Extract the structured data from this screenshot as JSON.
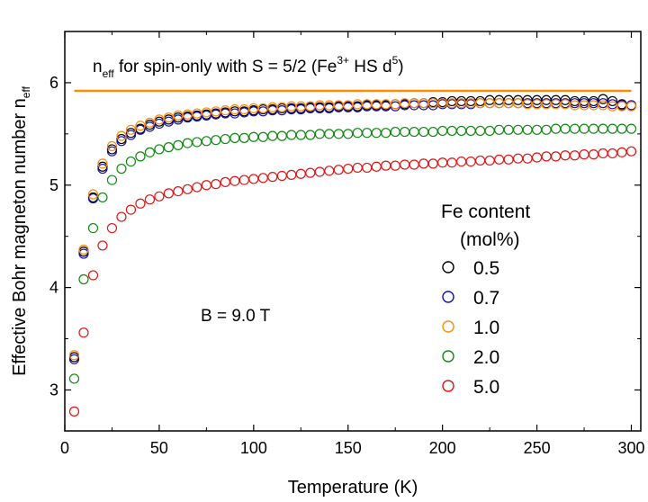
{
  "chart_data": {
    "type": "scatter",
    "xlabel": "Temperature (K)",
    "ylabel_main": "Effective Bohr magneton number n",
    "ylabel_sub": "eff",
    "xlim": [
      0,
      305
    ],
    "ylim": [
      2.6,
      6.5
    ],
    "xticks": [
      0,
      50,
      100,
      150,
      200,
      250,
      300
    ],
    "yticks": [
      3,
      4,
      5,
      6
    ],
    "grid": false,
    "reference_line": {
      "y": 5.92,
      "x_range": [
        5,
        300
      ],
      "color": "#FF8C00",
      "label": {
        "n": "n",
        "eff": "eff",
        "t1": " for spin-only with S = 5/2 (Fe",
        "sup1": "3+",
        "t2": " HS d",
        "sup2": "5",
        "t3": ")"
      }
    },
    "annotation": "B = 9.0 T",
    "legend": {
      "title_line1": "Fe content",
      "title_line2": "(mol%)",
      "placement": "center-right"
    },
    "series": [
      {
        "name": "0.5",
        "color": "#000000",
        "x": [
          5,
          10,
          15,
          20,
          25,
          30,
          35,
          40,
          45,
          50,
          55,
          60,
          65,
          70,
          75,
          80,
          85,
          90,
          95,
          100,
          105,
          110,
          115,
          120,
          125,
          130,
          135,
          140,
          145,
          150,
          155,
          160,
          165,
          170,
          175,
          180,
          185,
          190,
          195,
          200,
          205,
          210,
          215,
          220,
          225,
          230,
          235,
          240,
          245,
          250,
          255,
          260,
          265,
          270,
          275,
          280,
          285,
          290,
          295,
          300
        ],
        "y": [
          3.32,
          4.35,
          4.88,
          5.18,
          5.35,
          5.45,
          5.51,
          5.55,
          5.59,
          5.62,
          5.64,
          5.66,
          5.67,
          5.68,
          5.69,
          5.7,
          5.71,
          5.72,
          5.72,
          5.73,
          5.74,
          5.74,
          5.75,
          5.75,
          5.75,
          5.76,
          5.76,
          5.76,
          5.77,
          5.77,
          5.77,
          5.78,
          5.78,
          5.78,
          5.79,
          5.79,
          5.8,
          5.8,
          5.81,
          5.81,
          5.82,
          5.82,
          5.82,
          5.82,
          5.83,
          5.83,
          5.83,
          5.83,
          5.83,
          5.83,
          5.83,
          5.83,
          5.83,
          5.82,
          5.82,
          5.82,
          5.84,
          5.82,
          5.79,
          5.78
        ]
      },
      {
        "name": "0.7",
        "color": "#1010C0",
        "x": [
          5,
          10,
          15,
          20,
          25,
          30,
          35,
          40,
          45,
          50,
          55,
          60,
          65,
          70,
          75,
          80,
          85,
          90,
          95,
          100,
          105,
          110,
          115,
          120,
          125,
          130,
          135,
          140,
          145,
          150,
          155,
          160,
          165,
          170,
          175,
          180,
          185,
          190,
          195,
          200,
          205,
          210,
          215,
          220,
          225,
          230,
          235,
          240,
          245,
          250,
          255,
          260,
          265,
          270,
          275,
          280,
          285,
          290,
          295,
          300
        ],
        "y": [
          3.3,
          4.33,
          4.87,
          5.16,
          5.33,
          5.43,
          5.49,
          5.54,
          5.57,
          5.6,
          5.62,
          5.64,
          5.66,
          5.67,
          5.68,
          5.69,
          5.7,
          5.7,
          5.71,
          5.72,
          5.72,
          5.73,
          5.73,
          5.74,
          5.74,
          5.75,
          5.75,
          5.75,
          5.76,
          5.76,
          5.76,
          5.77,
          5.77,
          5.77,
          5.77,
          5.78,
          5.78,
          5.78,
          5.78,
          5.79,
          5.79,
          5.79,
          5.79,
          5.8,
          5.8,
          5.8,
          5.8,
          5.8,
          5.8,
          5.8,
          5.8,
          5.8,
          5.8,
          5.8,
          5.8,
          5.8,
          5.8,
          5.79,
          5.78,
          5.78
        ]
      },
      {
        "name": "1.0",
        "color": "#FF8C00",
        "x": [
          5,
          10,
          15,
          20,
          25,
          30,
          35,
          40,
          45,
          50,
          55,
          60,
          65,
          70,
          75,
          80,
          85,
          90,
          95,
          100,
          105,
          110,
          115,
          120,
          125,
          130,
          135,
          140,
          145,
          150,
          155,
          160,
          165,
          170,
          175,
          180,
          185,
          190,
          195,
          200,
          205,
          210,
          215,
          220,
          225,
          230,
          235,
          240,
          245,
          250,
          255,
          260,
          265,
          270,
          275,
          280,
          285,
          290,
          295,
          300
        ],
        "y": [
          3.34,
          4.37,
          4.91,
          5.21,
          5.38,
          5.48,
          5.54,
          5.58,
          5.61,
          5.64,
          5.66,
          5.68,
          5.69,
          5.7,
          5.71,
          5.72,
          5.73,
          5.74,
          5.74,
          5.75,
          5.75,
          5.76,
          5.76,
          5.77,
          5.77,
          5.77,
          5.78,
          5.78,
          5.78,
          5.78,
          5.79,
          5.79,
          5.79,
          5.79,
          5.79,
          5.8,
          5.8,
          5.8,
          5.8,
          5.8,
          5.8,
          5.8,
          5.8,
          5.8,
          5.8,
          5.8,
          5.8,
          5.8,
          5.79,
          5.79,
          5.79,
          5.79,
          5.79,
          5.78,
          5.78,
          5.78,
          5.78,
          5.77,
          5.77,
          5.77
        ]
      },
      {
        "name": "2.0",
        "color": "#118811",
        "x": [
          5,
          10,
          15,
          20,
          25,
          30,
          35,
          40,
          45,
          50,
          55,
          60,
          65,
          70,
          75,
          80,
          85,
          90,
          95,
          100,
          105,
          110,
          115,
          120,
          125,
          130,
          135,
          140,
          145,
          150,
          155,
          160,
          165,
          170,
          175,
          180,
          185,
          190,
          195,
          200,
          205,
          210,
          215,
          220,
          225,
          230,
          235,
          240,
          245,
          250,
          255,
          260,
          265,
          270,
          275,
          280,
          285,
          290,
          295,
          300
        ],
        "y": [
          3.11,
          4.08,
          4.58,
          4.88,
          5.05,
          5.16,
          5.23,
          5.28,
          5.32,
          5.35,
          5.37,
          5.39,
          5.41,
          5.42,
          5.43,
          5.44,
          5.45,
          5.46,
          5.46,
          5.47,
          5.47,
          5.48,
          5.48,
          5.49,
          5.49,
          5.49,
          5.5,
          5.5,
          5.5,
          5.5,
          5.51,
          5.51,
          5.51,
          5.51,
          5.52,
          5.52,
          5.52,
          5.52,
          5.52,
          5.53,
          5.53,
          5.53,
          5.53,
          5.53,
          5.53,
          5.54,
          5.54,
          5.54,
          5.54,
          5.54,
          5.54,
          5.55,
          5.55,
          5.55,
          5.55,
          5.55,
          5.55,
          5.55,
          5.55,
          5.55
        ]
      },
      {
        "name": "5.0",
        "color": "#E01515",
        "x": [
          5,
          10,
          15,
          20,
          25,
          30,
          35,
          40,
          45,
          50,
          55,
          60,
          65,
          70,
          75,
          80,
          85,
          90,
          95,
          100,
          105,
          110,
          115,
          120,
          125,
          130,
          135,
          140,
          145,
          150,
          155,
          160,
          165,
          170,
          175,
          180,
          185,
          190,
          195,
          200,
          205,
          210,
          215,
          220,
          225,
          230,
          235,
          240,
          245,
          250,
          255,
          260,
          265,
          270,
          275,
          280,
          285,
          290,
          295,
          300
        ],
        "y": [
          2.79,
          3.56,
          4.12,
          4.41,
          4.58,
          4.69,
          4.76,
          4.82,
          4.86,
          4.89,
          4.92,
          4.94,
          4.96,
          4.98,
          5.0,
          5.01,
          5.03,
          5.04,
          5.05,
          5.06,
          5.07,
          5.08,
          5.09,
          5.1,
          5.11,
          5.12,
          5.13,
          5.14,
          5.15,
          5.16,
          5.17,
          5.17,
          5.18,
          5.19,
          5.19,
          5.2,
          5.2,
          5.21,
          5.21,
          5.22,
          5.22,
          5.23,
          5.23,
          5.24,
          5.24,
          5.25,
          5.25,
          5.26,
          5.26,
          5.27,
          5.28,
          5.28,
          5.29,
          5.29,
          5.3,
          5.3,
          5.31,
          5.31,
          5.32,
          5.33
        ]
      }
    ]
  }
}
